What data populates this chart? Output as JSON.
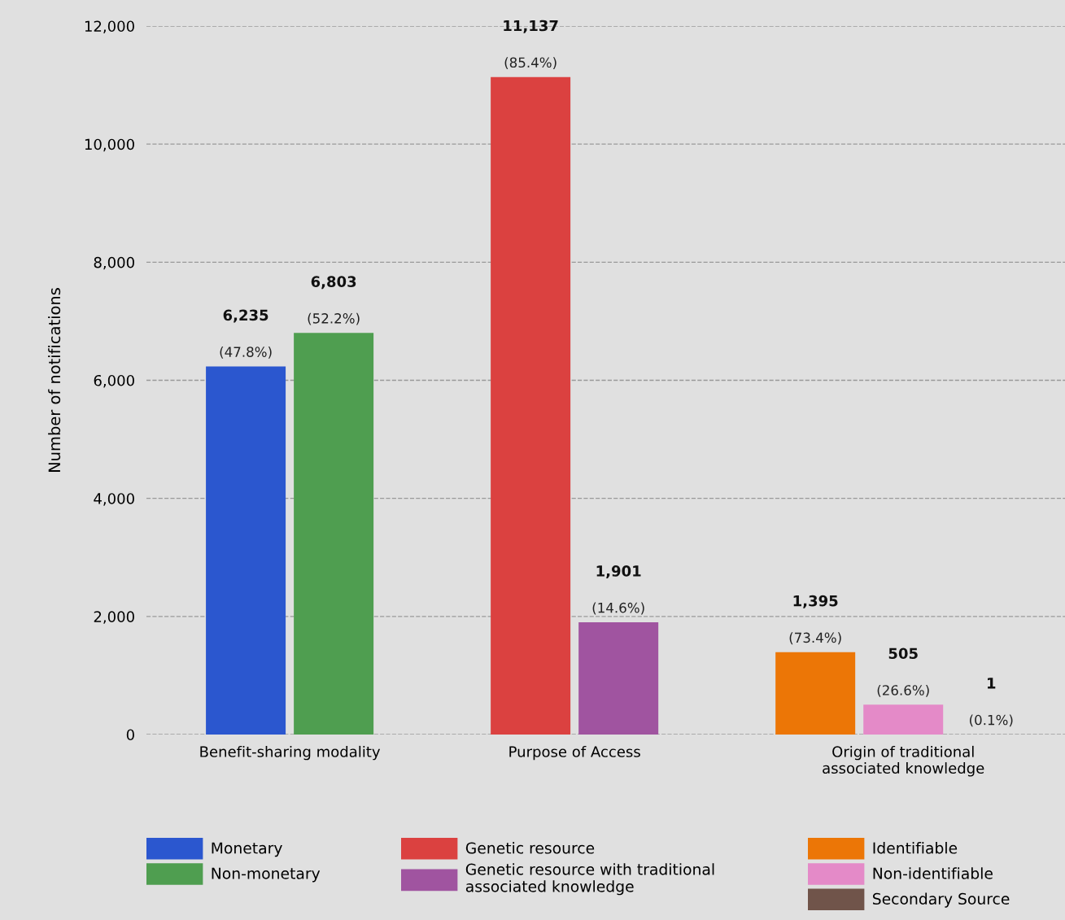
{
  "chart_data": {
    "type": "bar",
    "ylabel": "Number of notifications",
    "categories": [
      "Benefit-sharing modality",
      "Purpose of Access",
      "Origin of traditional\nassociated knowledge"
    ],
    "series": [
      {
        "name": "Monetary",
        "color": "#2b57cf",
        "values": [
          6235,
          null,
          null
        ],
        "value_labels": [
          "6,235\n(47.8%)",
          null,
          null
        ]
      },
      {
        "name": "Non-monetary",
        "color": "#4f9e50",
        "values": [
          6803,
          null,
          null
        ],
        "value_labels": [
          "6,803\n(52.2%)",
          null,
          null
        ]
      },
      {
        "name": "Genetic resource",
        "color": "#db4140",
        "values": [
          null,
          11137,
          null
        ],
        "value_labels": [
          null,
          "11,137\n(85.4%)",
          null
        ]
      },
      {
        "name": "Genetic resource with traditional\nassociated knowledge",
        "color": "#a054a0",
        "values": [
          null,
          1901,
          null
        ],
        "value_labels": [
          null,
          "1,901\n(14.6%)",
          null
        ]
      },
      {
        "name": "Identifiable",
        "color": "#ec7606",
        "values": [
          null,
          null,
          1395
        ],
        "value_labels": [
          null,
          null,
          "1,395\n(73.4%)"
        ]
      },
      {
        "name": "Non-identifiable",
        "color": "#e48ac8",
        "values": [
          null,
          null,
          505
        ],
        "value_labels": [
          null,
          null,
          "505\n(26.6%)"
        ]
      },
      {
        "name": "Secondary Source",
        "color": "#70544a",
        "values": [
          null,
          null,
          1
        ],
        "value_labels": [
          null,
          null,
          "1\n(0.1%)"
        ]
      }
    ],
    "ylim": [
      0,
      12000
    ],
    "yticks": [
      {
        "value": 0,
        "label": "0"
      },
      {
        "value": 2000,
        "label": "2,000"
      },
      {
        "value": 4000,
        "label": "4,000"
      },
      {
        "value": 6000,
        "label": "6,000"
      },
      {
        "value": 8000,
        "label": "8,000"
      },
      {
        "value": 10000,
        "label": "10,000"
      },
      {
        "value": 12000,
        "label": "12,000"
      }
    ],
    "grid": "y",
    "legend": "bottom"
  }
}
